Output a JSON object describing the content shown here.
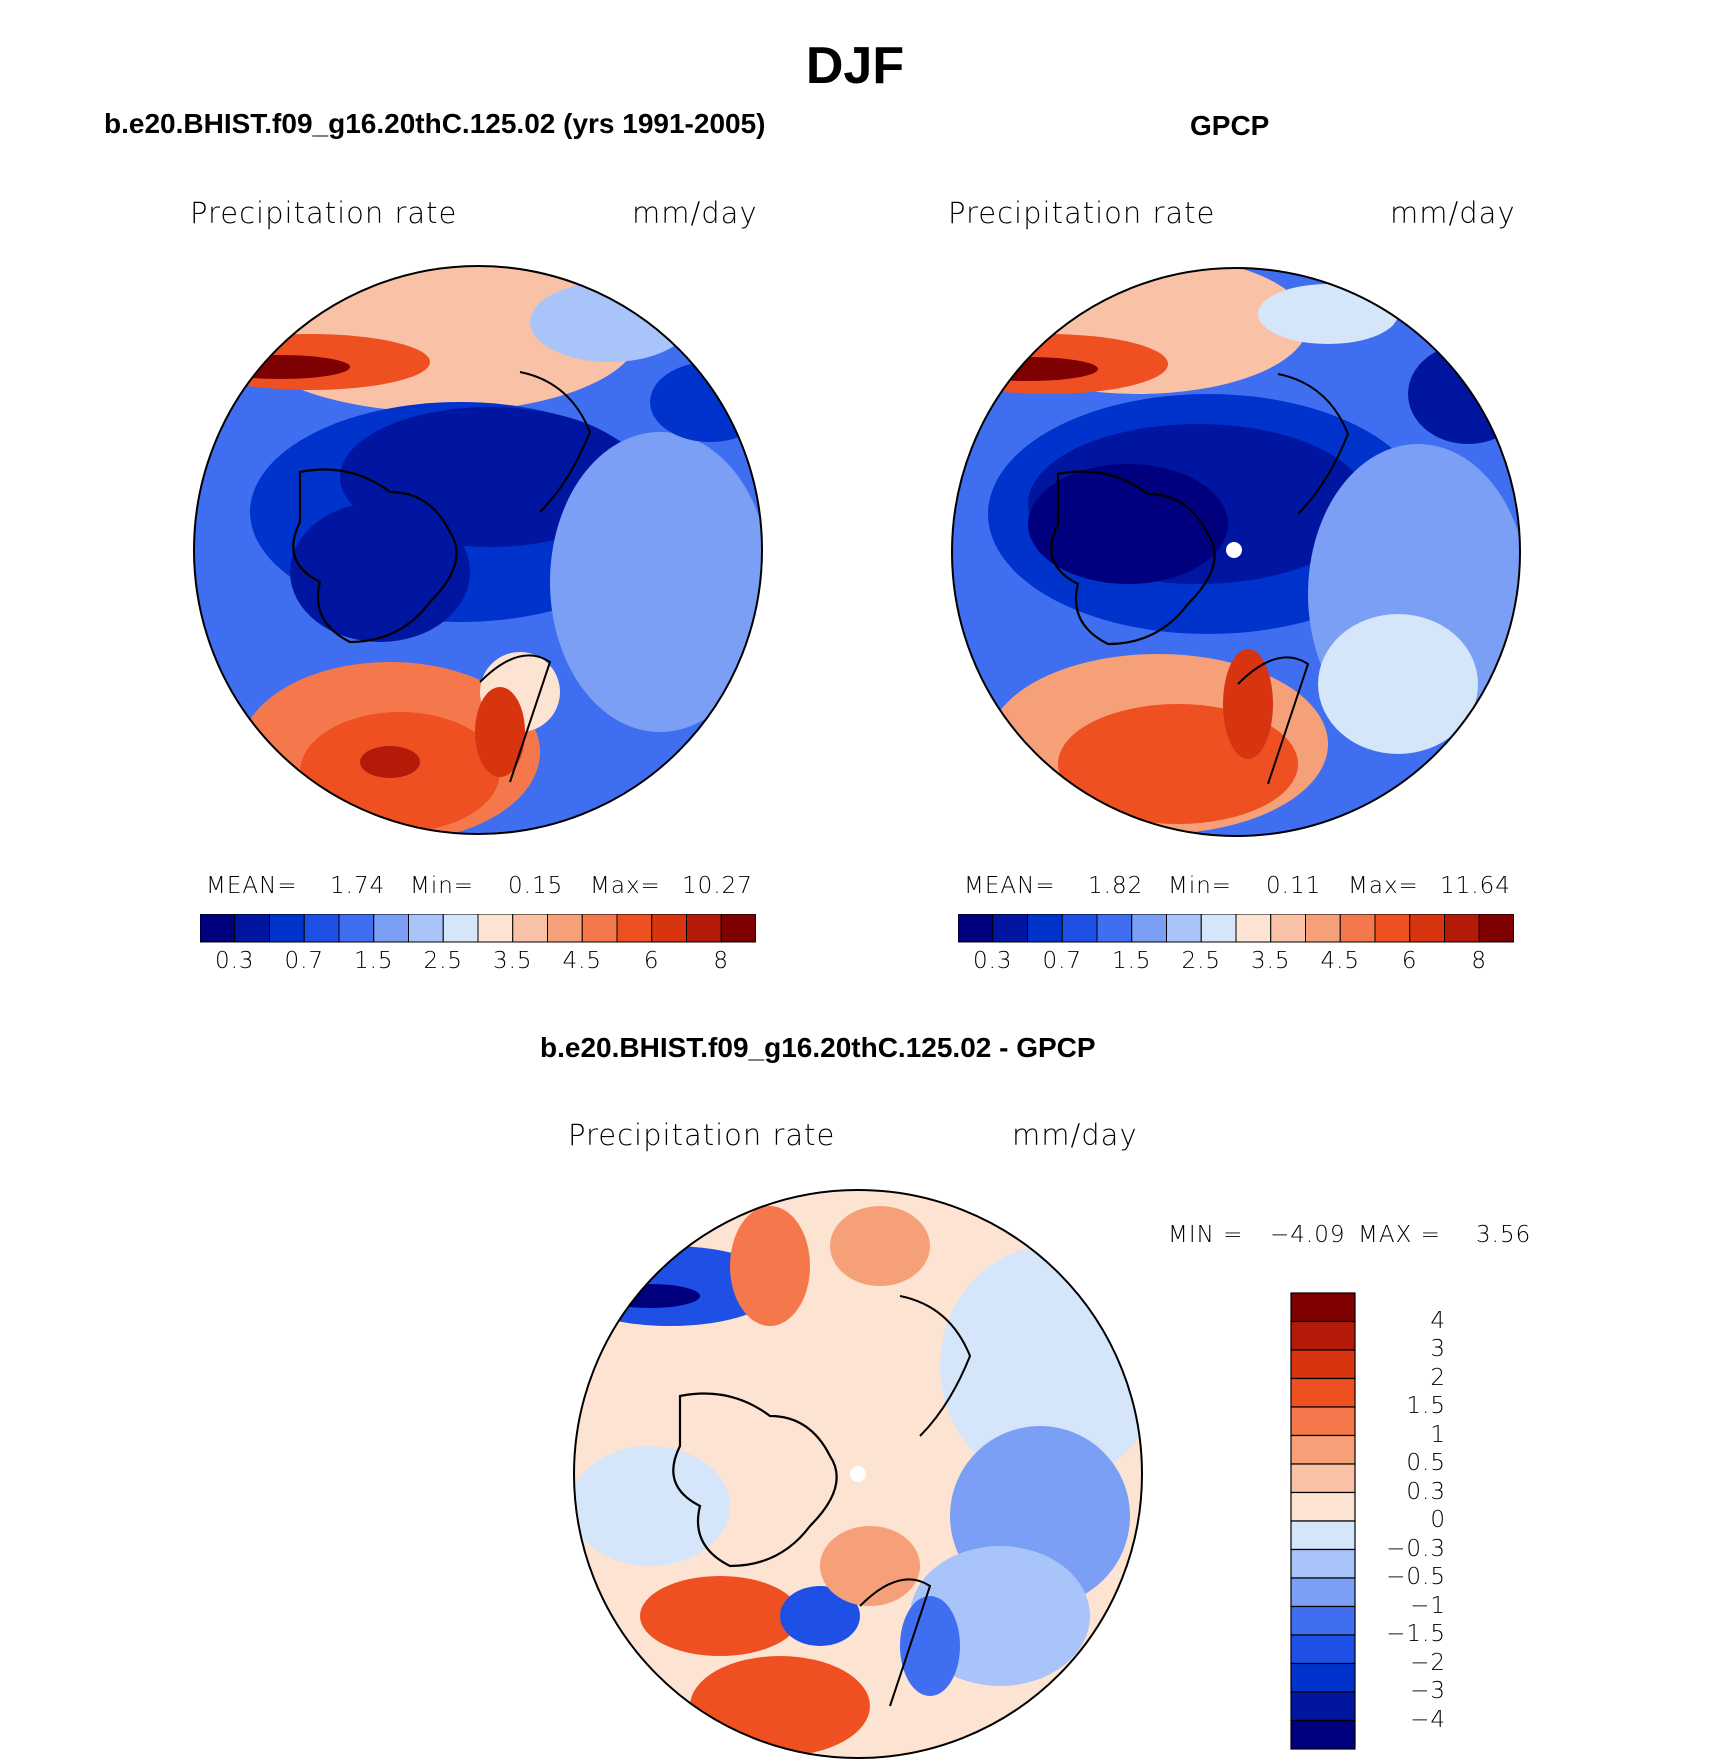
{
  "figure": {
    "title": "DJF",
    "panels": [
      {
        "id": "model",
        "title": "b.e20.BHIST.f09_g16.20thC.125.02 (yrs 1991-2005)",
        "variable": "Precipitation  rate",
        "units": "mm/day",
        "stats": {
          "mean_label": "MEAN=",
          "mean": "1.74",
          "min_label": "Min=",
          "min": "0.15",
          "max_label": "Max=",
          "max": "10.27"
        },
        "colorbar_labels": [
          "0.3",
          "0.7",
          "1.5",
          "2.5",
          "3.5",
          "4.5",
          "6",
          "8"
        ]
      },
      {
        "id": "obs",
        "title": "GPCP",
        "variable": "Precipitation  rate",
        "units": "mm/day",
        "stats": {
          "mean_label": "MEAN=",
          "mean": "1.82",
          "min_label": "Min=",
          "min": "0.11",
          "max_label": "Max=",
          "max": "11.64"
        },
        "colorbar_labels": [
          "0.3",
          "0.7",
          "1.5",
          "2.5",
          "3.5",
          "4.5",
          "6",
          "8"
        ]
      },
      {
        "id": "diff",
        "title": "b.e20.BHIST.f09_g16.20thC.125.02 - GPCP",
        "variable": "Precipitation  rate",
        "units": "mm/day",
        "stats": {
          "min_label": "MIN =",
          "min": "−4.09",
          "max_label": "MAX =",
          "max": "3.56"
        },
        "colorbar_labels": [
          "4",
          "3",
          "2",
          "1.5",
          "1",
          "0.5",
          "0.3",
          "0",
          "−0.3",
          "−0.5",
          "−1",
          "−1.5",
          "−2",
          "−3",
          "−4"
        ]
      }
    ],
    "colors": {
      "abs_scale": [
        "#00007f",
        "#0016a0",
        "#0033cc",
        "#1e50e6",
        "#3f6ff0",
        "#7a9ff5",
        "#a9c4f8",
        "#d5e6fb",
        "#fde4d2",
        "#f9c2a6",
        "#f6a07a",
        "#f4784b",
        "#ef5022",
        "#d83410",
        "#b31b08",
        "#7f0000"
      ],
      "diff_scale": [
        "#00007f",
        "#0016a0",
        "#0033cc",
        "#1e50e6",
        "#3f6ff0",
        "#7a9ff5",
        "#a9c4f8",
        "#d5e6fb",
        "#fde4d2",
        "#f9c2a6",
        "#f6a07a",
        "#f4784b",
        "#ef5022",
        "#d83410",
        "#b31b08",
        "#7f0000"
      ]
    }
  }
}
